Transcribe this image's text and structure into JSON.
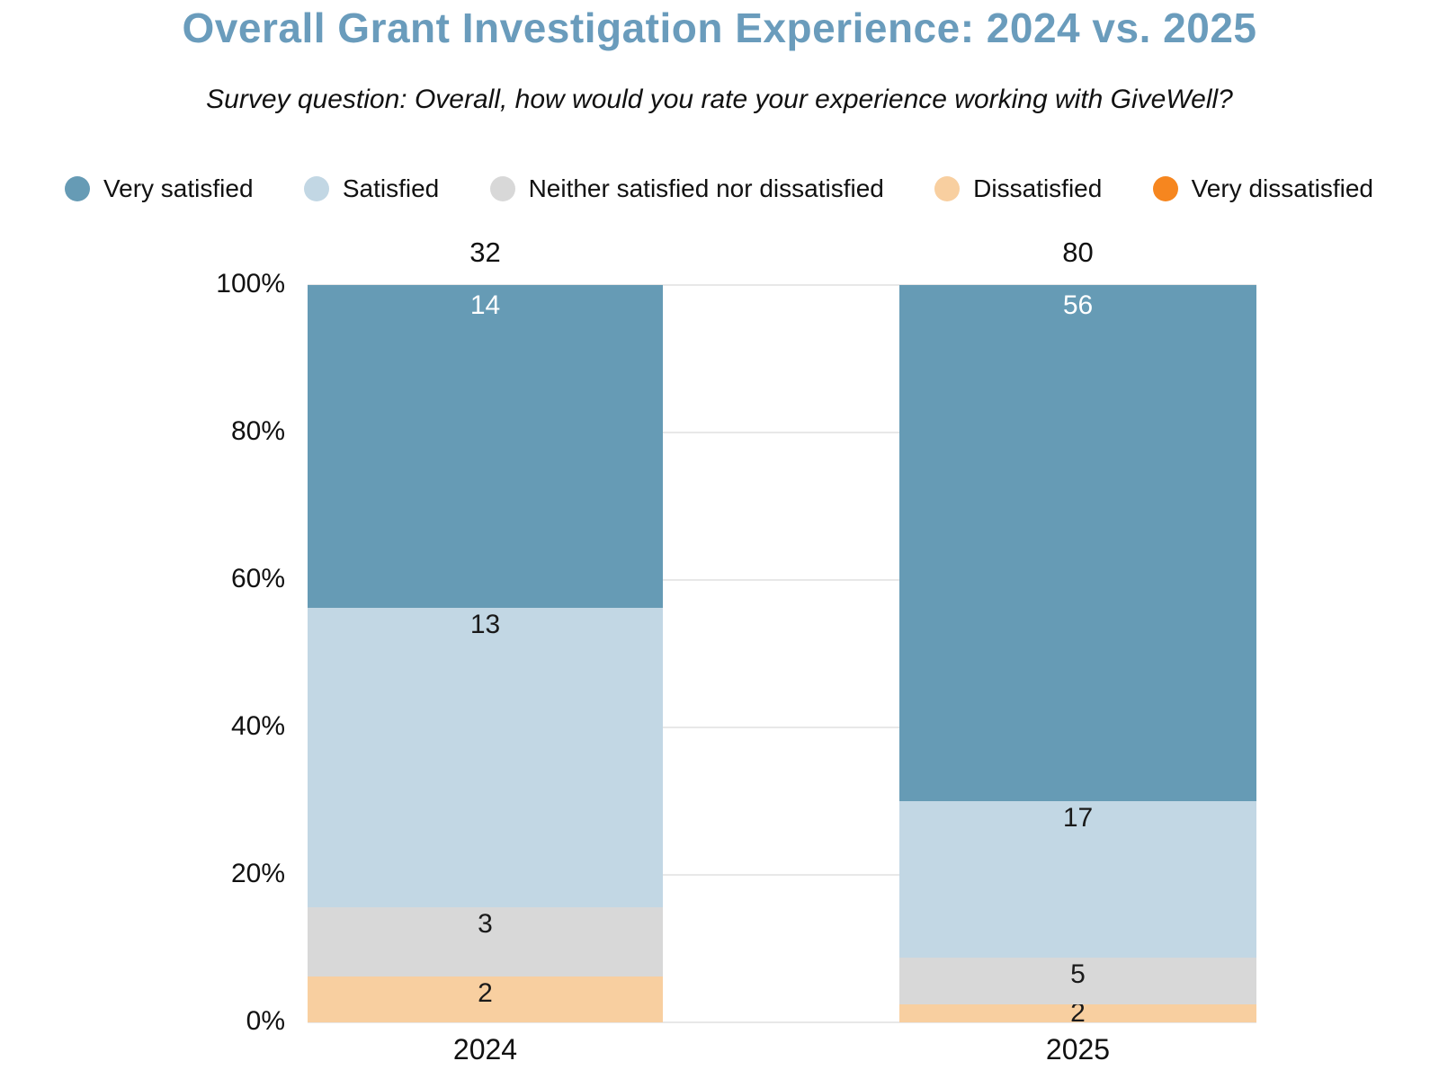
{
  "title": "Overall Grant Investigation Experience: 2024 vs. 2025",
  "subtitle": "Survey question: Overall, how would you rate your experience working with GiveWell?",
  "colors": {
    "title_text": "#6A9CBC",
    "body_text": "#111111",
    "gridline": "#E8E8E8",
    "background": "#FFFFFF"
  },
  "chart_data": {
    "type": "bar",
    "variant": "stacked-column-percent",
    "title": "Overall Grant Investigation Experience: 2024 vs. 2025",
    "subtitle": "Survey question: Overall, how would you rate your experience working with GiveWell?",
    "categories": [
      "2024",
      "2025"
    ],
    "totals": [
      32,
      80
    ],
    "series": [
      {
        "name": "Very satisfied",
        "color": "#669BB5",
        "label_color": "#FFFFFF",
        "values": [
          14,
          56
        ]
      },
      {
        "name": "Satisfied",
        "color": "#C2D7E4",
        "label_color": "#1A1A1A",
        "values": [
          13,
          17
        ]
      },
      {
        "name": "Neither satisfied nor dissatisfied",
        "color": "#D8D8D8",
        "label_color": "#1A1A1A",
        "values": [
          3,
          5
        ]
      },
      {
        "name": "Dissatisfied",
        "color": "#F8CFA0",
        "label_color": "#1A1A1A",
        "values": [
          2,
          2
        ]
      },
      {
        "name": "Very dissatisfied",
        "color": "#F6861F",
        "label_color": "#1A1A1A",
        "values": [
          0,
          0
        ]
      }
    ],
    "y_ticks": [
      "0%",
      "20%",
      "40%",
      "60%",
      "80%",
      "100%"
    ],
    "ylim": [
      0,
      100
    ],
    "grid": true,
    "legend_position": "top",
    "xlabel": "",
    "ylabel": ""
  }
}
